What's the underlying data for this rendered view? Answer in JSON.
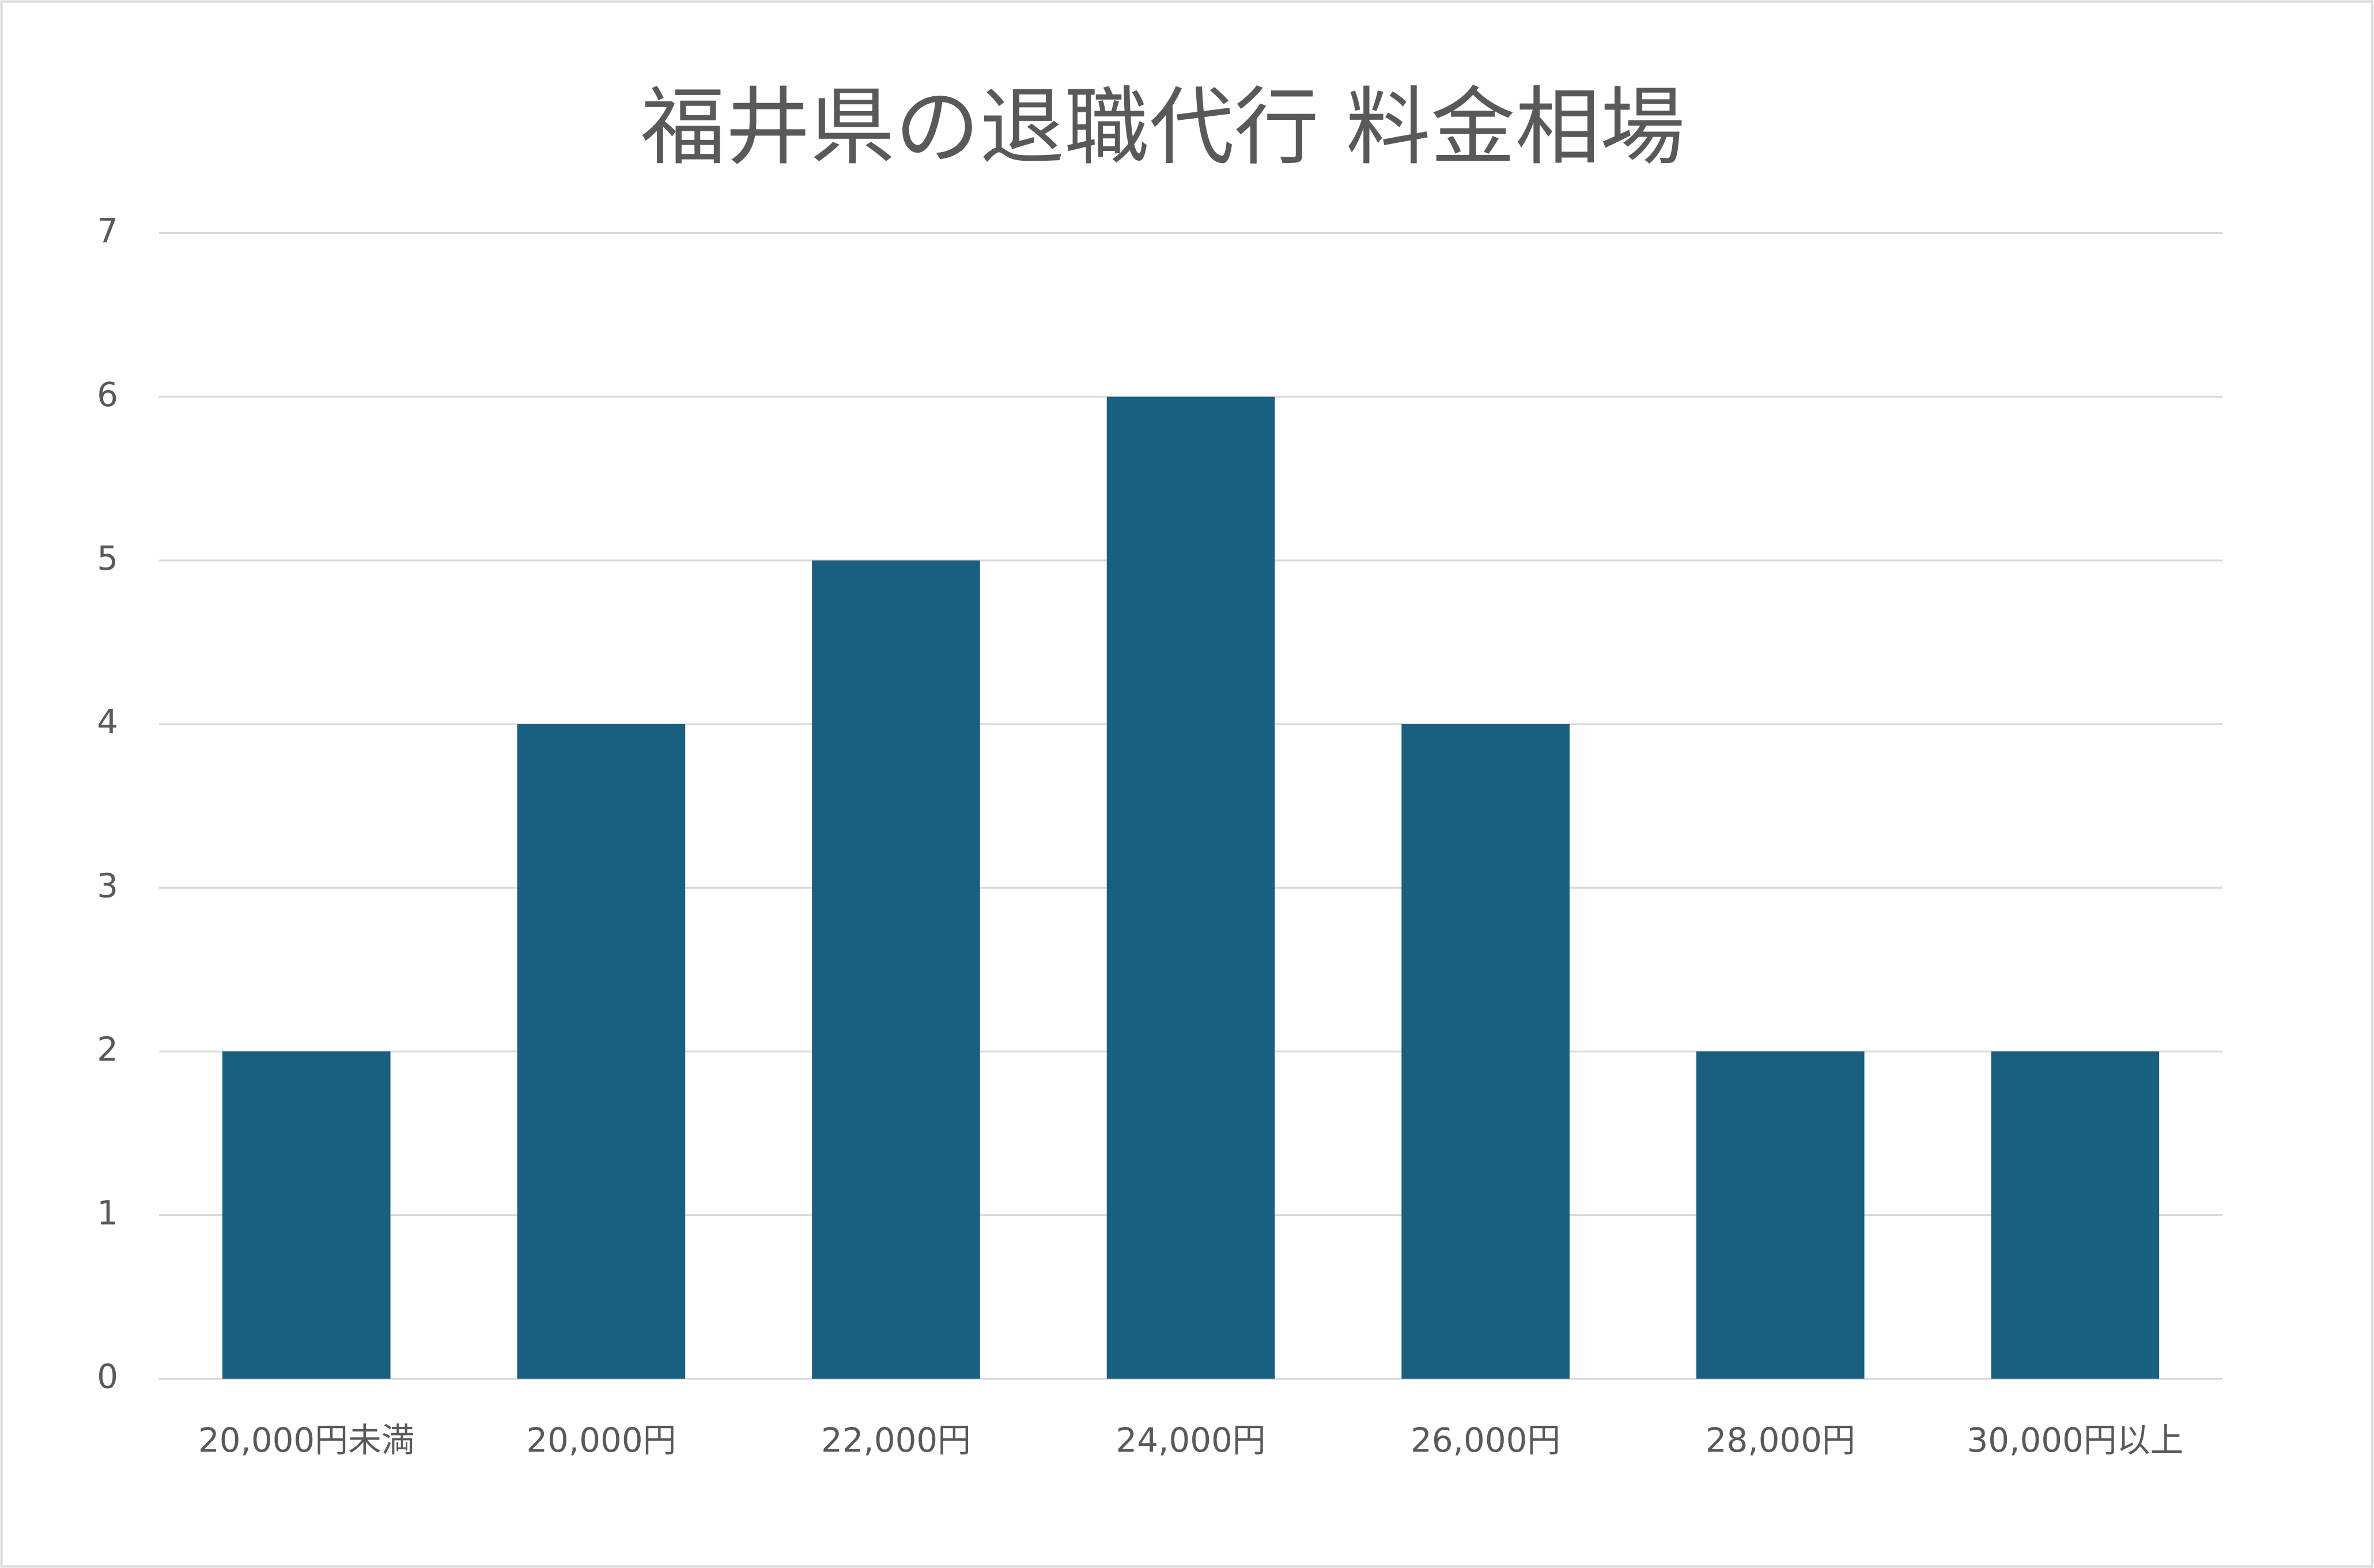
{
  "chart_data": {
    "type": "bar",
    "title": "福井県の退職代行 料金相場",
    "categories": [
      "20,000円未満",
      "20,000円",
      "22,000円",
      "24,000円",
      "26,000円",
      "28,000円",
      "30,000円以上"
    ],
    "values": [
      2,
      4,
      5,
      6,
      4,
      2,
      2
    ],
    "color": "#185f80",
    "ylim": [
      0,
      7
    ],
    "yticks": [
      0,
      1,
      2,
      3,
      4,
      5,
      6,
      7
    ],
    "grid": true
  }
}
